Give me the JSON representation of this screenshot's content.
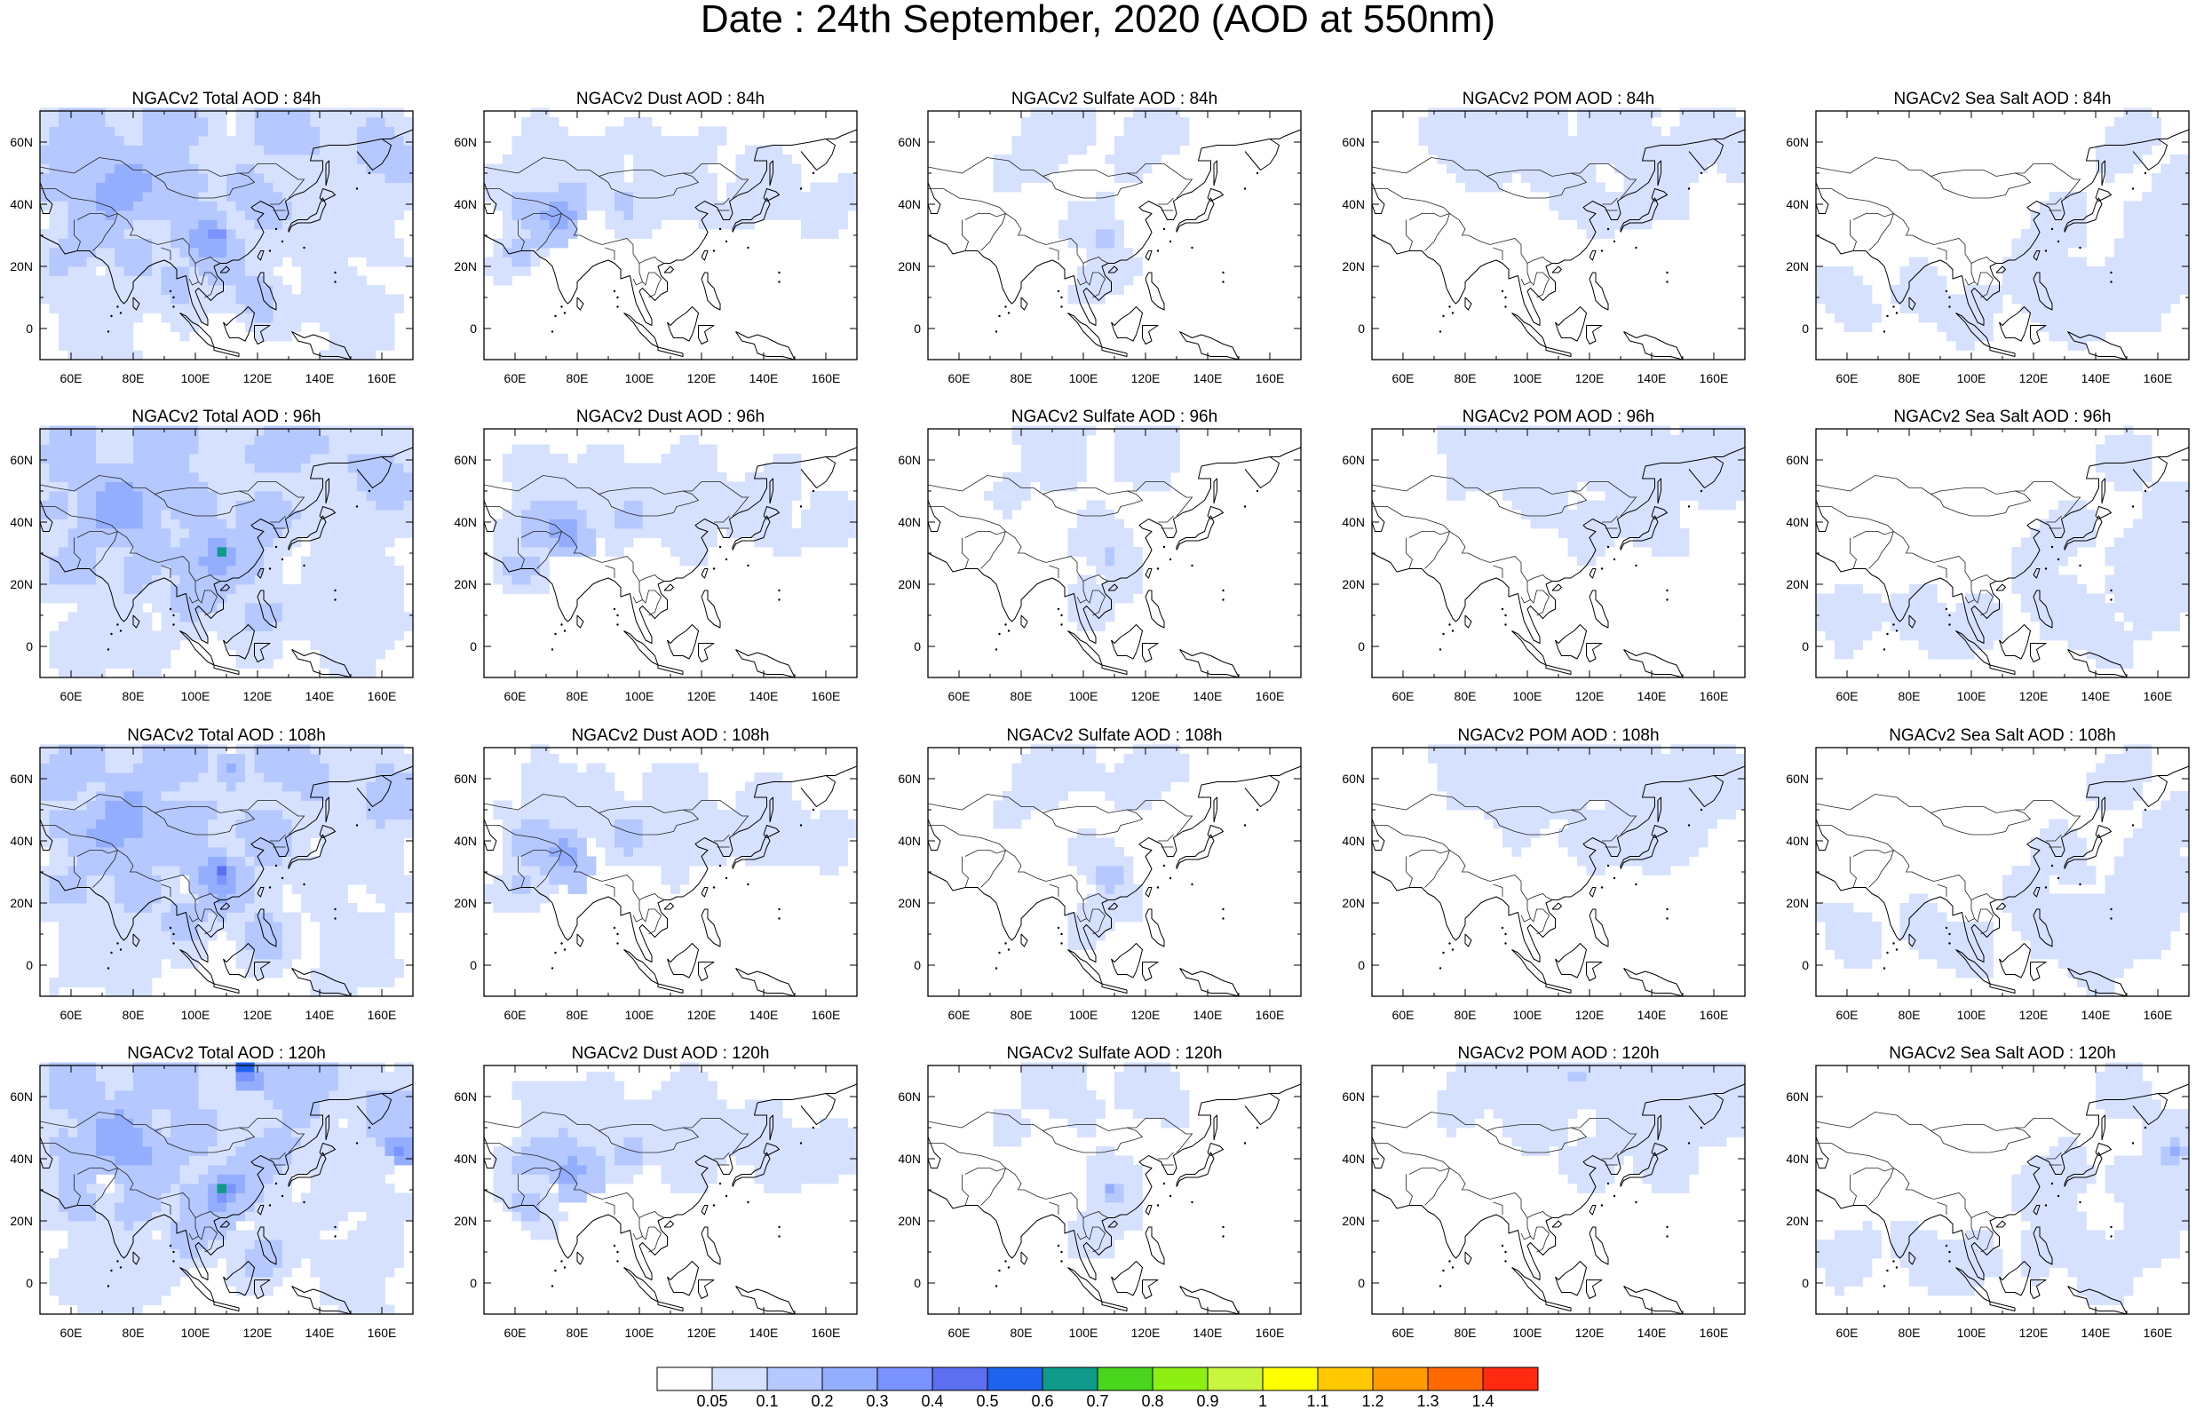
{
  "title": "Date : 24th September, 2020 (AOD at 550nm)",
  "lon_ticks": [
    "60E",
    "80E",
    "100E",
    "120E",
    "140E",
    "160E"
  ],
  "lat_ticks": [
    "60N",
    "40N",
    "20N",
    "0"
  ],
  "columns": [
    {
      "key": "total",
      "label": "NGACv2 Total AOD"
    },
    {
      "key": "dust",
      "label": "NGACv2 Dust AOD"
    },
    {
      "key": "sulfate",
      "label": "NGACv2 Sulfate AOD"
    },
    {
      "key": "pom",
      "label": "NGACv2 POM AOD"
    },
    {
      "key": "seasalt",
      "label": "NGACv2 Sea Salt AOD"
    }
  ],
  "panel_titles": [
    [
      "NGACv2 Total AOD : 84h",
      "NGACv2 Dust AOD : 84h",
      "NGACv2 Sulfate AOD : 84h",
      "NGACv2 POM AOD : 84h",
      "NGACv2 Sea Salt AOD : 84h"
    ],
    [
      "NGACv2 Total AOD : 96h",
      "NGACv2 Dust AOD : 96h",
      "NGACv2 Sulfate AOD : 96h",
      "NGACv2 POM AOD : 96h",
      "NGACv2 Sea Salt AOD : 96h"
    ],
    [
      "NGACv2 Total AOD : 108h",
      "NGACv2 Dust AOD : 108h",
      "NGACv2 Sulfate AOD : 108h",
      "NGACv2 POM AOD : 108h",
      "NGACv2 Sea Salt AOD : 108h"
    ],
    [
      "NGACv2 Total AOD : 120h",
      "NGACv2 Dust AOD : 120h",
      "NGACv2 Sulfate AOD : 120h",
      "NGACv2 POM AOD : 120h",
      "NGACv2 Sea Salt  AOD : 120h"
    ]
  ],
  "colorbar": {
    "labels": [
      "0.05",
      "0.1",
      "0.2",
      "0.3",
      "0.4",
      "0.5",
      "0.6",
      "0.7",
      "0.8",
      "0.9",
      "1",
      "1.1",
      "1.2",
      "1.3",
      "1.4"
    ],
    "colors": [
      "#ffffff",
      "#d6e1ff",
      "#b5c8ff",
      "#94aeff",
      "#7b93ff",
      "#5c6ff0",
      "#1f64ee",
      "#0f9a8a",
      "#49d61c",
      "#8ef012",
      "#c9f53f",
      "#ffff00",
      "#ffc800",
      "#ff9a00",
      "#ff6a00",
      "#ff2a10"
    ]
  },
  "chart_data": {
    "type": "heatmap",
    "title": "Date : 24th September, 2020 (AOD at 550nm)",
    "variable": "AOD at 550nm",
    "x_range": [
      50,
      170
    ],
    "y_range": [
      -10,
      70
    ],
    "forecast_hours": [
      "84h",
      "96h",
      "108h",
      "120h"
    ],
    "species": [
      "Total",
      "Dust",
      "Sulfate",
      "POM",
      "Sea Salt"
    ],
    "features": [
      {
        "species": "total",
        "hour": "84h",
        "lon": 106,
        "lat": 30,
        "aod": 0.4
      },
      {
        "species": "total",
        "hour": "96h",
        "lon": 107,
        "lat": 30,
        "aod": 0.8
      },
      {
        "species": "total",
        "hour": "108h",
        "lon": 106,
        "lat": 30,
        "aod": 0.6
      },
      {
        "species": "total",
        "hour": "120h",
        "lon": 107,
        "lat": 31,
        "aod": 0.8
      },
      {
        "species": "total",
        "hour": "120h",
        "lon": 114,
        "lat": 69,
        "aod": 0.7
      },
      {
        "species": "total",
        "hour": "120h",
        "lon": 164,
        "lat": 42,
        "aod": 0.4
      },
      {
        "species": "dust",
        "hour": "84h",
        "lon": 75,
        "lat": 38,
        "aod": 0.3
      },
      {
        "species": "sulfate",
        "hour": "84h",
        "lon": 107,
        "lat": 29,
        "aod": 0.3
      },
      {
        "species": "sulfate",
        "hour": "120h",
        "lon": 107,
        "lat": 30,
        "aod": 0.4
      },
      {
        "species": "pom",
        "hour": "120h",
        "lon": 114,
        "lat": 66,
        "aod": 0.3
      },
      {
        "species": "seasalt",
        "hour": "120h",
        "lon": 165,
        "lat": 41,
        "aod": 0.3
      }
    ]
  }
}
